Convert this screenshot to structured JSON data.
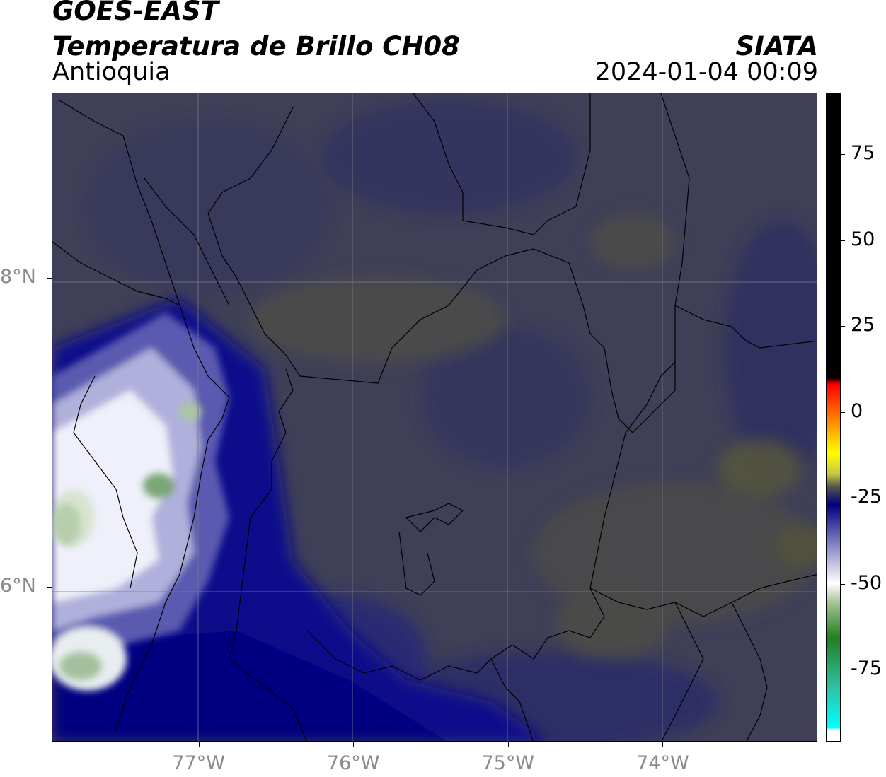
{
  "header": {
    "satellite": "GOES-EAST",
    "product": "Temperatura de Brillo CH08",
    "agency": "SIATA",
    "region": "Antioquia",
    "datetime": "2024-01-04 00:09"
  },
  "map": {
    "lat_labels": [
      {
        "label": "8°N",
        "value": 8
      },
      {
        "label": "6°N",
        "value": 6
      }
    ],
    "lon_labels": [
      {
        "label": "77°W",
        "value": -77
      },
      {
        "label": "76°W",
        "value": -76
      },
      {
        "label": "75°W",
        "value": -75
      },
      {
        "label": "74°W",
        "value": -74
      }
    ],
    "extent": {
      "lon_min": -77.95,
      "lon_max": -73.0,
      "lat_min": 5.0,
      "lat_max": 9.2
    },
    "background_color": "#3f3f58"
  },
  "colorbar": {
    "labels": [
      "75",
      "50",
      "25",
      "0",
      "-25",
      "-50",
      "-75"
    ],
    "values": [
      75,
      50,
      25,
      0,
      -25,
      -50,
      -75
    ],
    "range": [
      -96,
      93
    ],
    "stops": [
      {
        "value": 93,
        "color": "#000000"
      },
      {
        "value": 10,
        "color": "#000000"
      },
      {
        "value": 8,
        "color": "#ff0000"
      },
      {
        "value": -4,
        "color": "#ff9900"
      },
      {
        "value": -12,
        "color": "#ffff00"
      },
      {
        "value": -18,
        "color": "#c8c840"
      },
      {
        "value": -22,
        "color": "#505050"
      },
      {
        "value": -27,
        "color": "#000080"
      },
      {
        "value": -38,
        "color": "#7c7cc0"
      },
      {
        "value": -50,
        "color": "#ffffff"
      },
      {
        "value": -56,
        "color": "#a0c090"
      },
      {
        "value": -66,
        "color": "#208020"
      },
      {
        "value": -80,
        "color": "#30c0a0"
      },
      {
        "value": -92,
        "color": "#00ffff"
      },
      {
        "value": -93,
        "color": "#ffffff"
      },
      {
        "value": -96,
        "color": "#ffffff"
      }
    ]
  }
}
